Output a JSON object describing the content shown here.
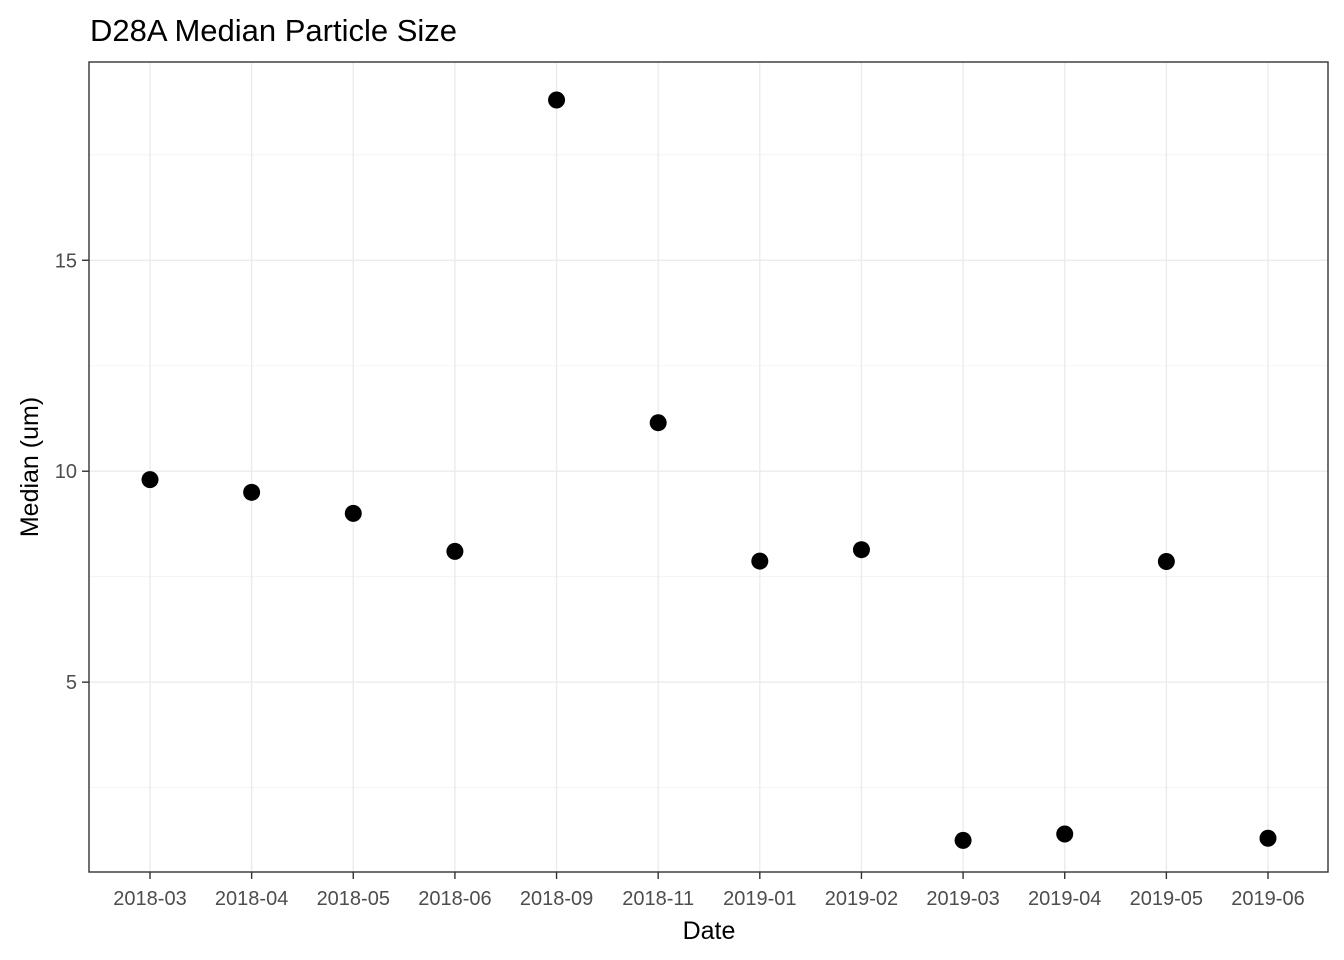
{
  "chart_data": {
    "type": "scatter",
    "title": "D28A Median Particle Size",
    "xlabel": "Date",
    "ylabel": "Median (um)",
    "x": [
      "2018-03",
      "2018-04",
      "2018-05",
      "2018-06",
      "2018-09",
      "2018-11",
      "2019-01",
      "2019-02",
      "2019-03",
      "2019-04",
      "2019-05",
      "2019-06"
    ],
    "series": [
      {
        "values": [
          9.8,
          9.5,
          9.0,
          8.1,
          18.8,
          11.15,
          7.87,
          8.14,
          1.25,
          1.4,
          7.86,
          1.3
        ]
      }
    ],
    "y_ticks": [
      5,
      10,
      15
    ],
    "ylim": [
      0.5,
      19.7
    ],
    "grid": true,
    "point_color": "#000000"
  }
}
